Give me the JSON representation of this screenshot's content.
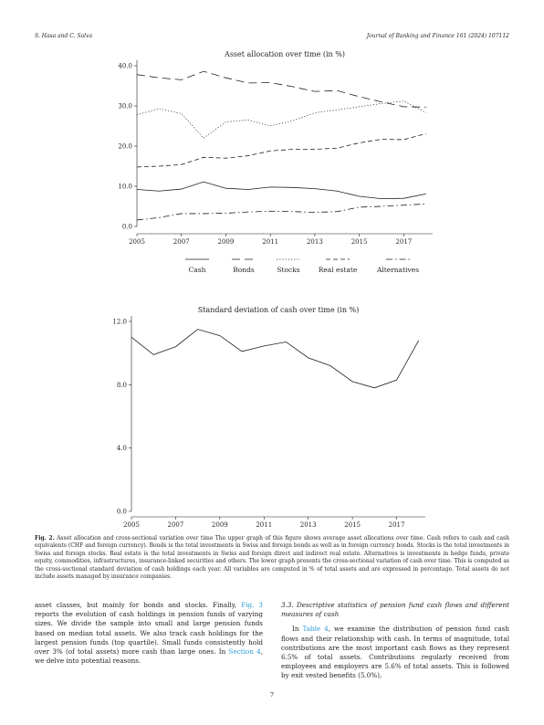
{
  "header": {
    "authors": "S. Hasa and C. Salva",
    "journal": "Journal of Banking and Finance 161 (2024) 107112"
  },
  "chart_data": [
    {
      "type": "line",
      "title": "Asset allocation over time (in %)",
      "x": [
        2005,
        2006,
        2007,
        2008,
        2009,
        2010,
        2011,
        2012,
        2013,
        2014,
        2015,
        2016,
        2017,
        2018
      ],
      "xticks": [
        "2005",
        "2007",
        "2009",
        "2011",
        "2013",
        "2015",
        "2017"
      ],
      "xlim": [
        2005,
        2018.3
      ],
      "ylim": [
        0,
        40
      ],
      "yticks": [
        "0.0",
        "10.0",
        "20.0",
        "30.0",
        "40.0"
      ],
      "series": [
        {
          "name": "Cash",
          "dash": "solid",
          "values": [
            9.2,
            8.8,
            9.3,
            11.1,
            9.5,
            9.2,
            9.8,
            9.7,
            9.4,
            8.8,
            7.5,
            6.9,
            7.0,
            8.1
          ]
        },
        {
          "name": "Bonds",
          "dash": "long",
          "values": [
            37.8,
            37.0,
            36.5,
            38.6,
            37.0,
            35.7,
            35.8,
            34.8,
            33.6,
            33.8,
            32.3,
            31.0,
            29.8,
            29.7
          ]
        },
        {
          "name": "Stocks",
          "dash": "dot",
          "values": [
            27.8,
            29.3,
            28.1,
            22.0,
            26.0,
            26.5,
            25.0,
            26.3,
            28.3,
            29.0,
            29.8,
            30.6,
            31.2,
            28.3
          ]
        },
        {
          "name": "Real estate",
          "dash": "medium",
          "values": [
            14.8,
            15.0,
            15.4,
            17.2,
            17.0,
            17.6,
            18.8,
            19.2,
            19.2,
            19.5,
            20.8,
            21.7,
            21.6,
            23.1
          ]
        },
        {
          "name": "Alternatives",
          "dash": "dashdot",
          "values": [
            1.6,
            2.2,
            3.2,
            3.2,
            3.3,
            3.6,
            3.8,
            3.7,
            3.5,
            3.7,
            4.8,
            5.0,
            5.3,
            5.6
          ]
        }
      ]
    },
    {
      "type": "line",
      "title": "Standard deviation of cash over time (in %)",
      "x": [
        2005,
        2006,
        2007,
        2008,
        2009,
        2010,
        2011,
        2012,
        2013,
        2014,
        2015,
        2016,
        2017,
        2018
      ],
      "xticks": [
        "2005",
        "2007",
        "2009",
        "2011",
        "2013",
        "2015",
        "2017"
      ],
      "xlim": [
        2005,
        2018.3
      ],
      "ylim": [
        0,
        12
      ],
      "yticks": [
        "0.0",
        "4.0",
        "8.0",
        "12.0"
      ],
      "series": [
        {
          "name": "",
          "dash": "solid",
          "values": [
            11.0,
            9.9,
            10.4,
            11.5,
            11.1,
            10.1,
            10.45,
            10.7,
            9.7,
            9.2,
            8.2,
            7.8,
            8.3,
            10.8
          ]
        }
      ]
    }
  ],
  "caption": {
    "label": "Fig. 2.",
    "text": "Asset allocation and cross-sectional variation over time The upper graph of this figure shows average asset allocations over time. Cash refers to cash and cash equivalents (CHF and foreign currency). Bonds is the total investments in Swiss and foreign bonds as well as in foreign currency bonds. Stocks is the total investments in Swiss and foreign stocks. Real estate is the total investments in Swiss and foreign direct and indirect real estate. Alternatives is investments in hedge funds, private equity, commodities, infrastructures, insurance-linked securities and others. The lower graph presents the cross-sectional variation of cash over time. This is computed as the cross-sectional standard deviation of cash holdings each year. All variables are computed in % of total assets and are expressed in percentage. Total assets do not include assets managed by insurance companies."
  },
  "left_col": {
    "t1": "asset classes, but mainly for bonds and stocks. Finally, ",
    "link1": "Fig. 3",
    "t2": " reports the evolution of cash holdings in pension funds of varying sizes. We divide the sample into small and large pension funds based on median total assets. We also track cash holdings for the largest pension funds (top quartile). Small funds consistently hold over 3% (of total assets) more cash than large ones. In ",
    "link2": "Section 4",
    "t3": ", we delve into potential reasons."
  },
  "right_col": {
    "heading": "3.3. Descriptive statistics of pension fund cash flows and different measures of cash",
    "t1": "In ",
    "link1": "Table 4",
    "t2": ", we examine the distribution of pension fund cash flows and their relationship with cash. In terms of magnitude, total contributions are the most important cash flows as they represent 6.5% of total assets. Contributions regularly received from employees and employers are 5.6% of total assets. This is followed by exit vested benefits (5.0%),"
  },
  "page_number": "7"
}
